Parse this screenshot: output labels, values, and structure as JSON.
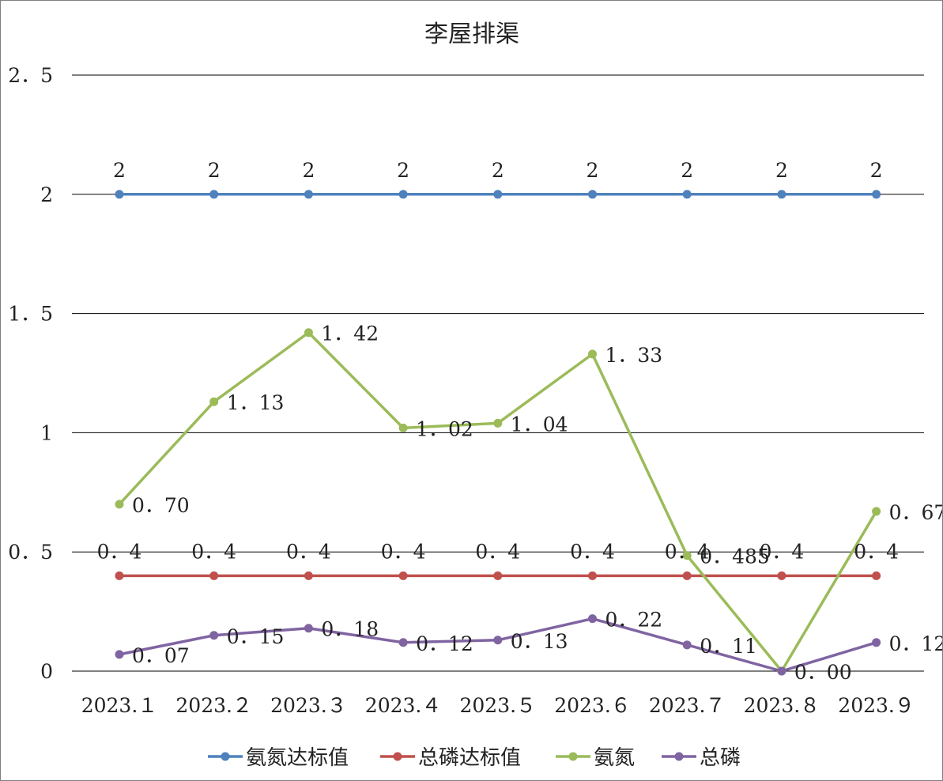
{
  "chart_data": {
    "type": "line",
    "title": "李屋排渠",
    "categories": [
      "2023.１",
      "2023.２",
      "2023.３",
      "2023.４",
      "2023.５",
      "2023.６",
      "2023.７",
      "2023.８",
      "2023.９"
    ],
    "ylim": [
      0,
      2.5
    ],
    "yticks": [
      0,
      0.5,
      1,
      1.5,
      2,
      2.5
    ],
    "ytick_labels": [
      "0",
      "0．5",
      "1",
      "1．5",
      "2",
      "2．5"
    ],
    "grid": true,
    "legend_position": "bottom",
    "series": [
      {
        "name": "氨氮达标值",
        "color": "#4f81bd",
        "values": [
          2,
          2,
          2,
          2,
          2,
          2,
          2,
          2,
          2
        ],
        "labels": [
          "2",
          "2",
          "2",
          "2",
          "2",
          "2",
          "2",
          "2",
          "2"
        ],
        "label_position": "above"
      },
      {
        "name": "总磷达标值",
        "color": "#c0504d",
        "values": [
          0.4,
          0.4,
          0.4,
          0.4,
          0.4,
          0.4,
          0.4,
          0.4,
          0.4
        ],
        "labels": [
          "0．4",
          "0．4",
          "0．4",
          "0．4",
          "0．4",
          "0．4",
          "0．4",
          "0．4",
          "0．4"
        ],
        "label_position": "above"
      },
      {
        "name": "氨氮",
        "color": "#9bbb59",
        "values": [
          0.7,
          1.13,
          1.42,
          1.02,
          1.04,
          1.33,
          0.485,
          0.0,
          0.67
        ],
        "labels": [
          "0．70",
          "1．13",
          "1．42",
          "1．02",
          "1．04",
          "1．33",
          "0．485",
          "",
          "0．67"
        ],
        "label_position": "right"
      },
      {
        "name": "总磷",
        "color": "#8064a2",
        "values": [
          0.07,
          0.15,
          0.18,
          0.12,
          0.13,
          0.22,
          0.11,
          0.0,
          0.12
        ],
        "labels": [
          "0．07",
          "0．15",
          "0．18",
          "0．12",
          "0．13",
          "0．22",
          "0．11",
          "0．00",
          "0．12"
        ],
        "label_position": "right"
      }
    ]
  }
}
